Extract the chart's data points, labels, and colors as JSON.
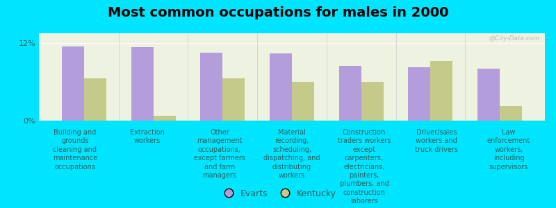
{
  "title": "Most common occupations for males in 2000",
  "categories": [
    "Building and\ngrounds\ncleaning and\nmaintenance\noccupations",
    "Extraction\nworkers",
    "Other\nmanagement\noccupations,\nexcept farmers\nand farm\nmanagers",
    "Material\nrecording,\nscheduling,\ndispatching, and\ndistributing\nworkers",
    "Construction\ntraders workers\nexcept\ncarpenters,\nelectricians,\npainters,\nplumbers, and\nconstruction\nlaborers",
    "Driver/sales\nworkers and\ntruck drivers",
    "Law\nenforcement\nworkers,\nincluding\nsupervisors"
  ],
  "evarts_values": [
    11.5,
    11.4,
    10.5,
    10.4,
    8.5,
    8.3,
    8.0
  ],
  "kentucky_values": [
    6.5,
    0.8,
    6.5,
    6.0,
    6.0,
    9.2,
    2.2
  ],
  "evarts_color": "#b39ddb",
  "kentucky_color": "#c5c98a",
  "background_color": "#00e5ff",
  "plot_bg_color": "#eef2e0",
  "ylim": [
    0,
    13.5
  ],
  "yticks": [
    0,
    12
  ],
  "ytick_labels": [
    "0%",
    "12%"
  ],
  "legend_labels": [
    "Evarts",
    "Kentucky"
  ],
  "watermark": "@City-Data.com",
  "title_fontsize": 14,
  "label_fontsize": 7,
  "bar_width": 0.32
}
